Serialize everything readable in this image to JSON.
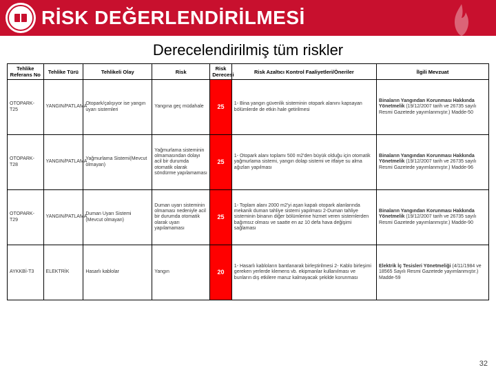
{
  "header": {
    "title": "RİSK DEĞERLENDİRİLMESİ"
  },
  "subtitle": "Derecelendirilmiş tüm riskler",
  "colors": {
    "header_bg": "#c8102e",
    "header_text": "#ffffff",
    "border": "#000000",
    "score_bg": "#ff0000",
    "score_text": "#ffffff"
  },
  "table": {
    "columns": [
      "Tehlike Referans No",
      "Tehlike Türü",
      "Tehlikeli Olay",
      "Risk",
      "Risk Derecesi",
      "Risk Azaltıcı Kontrol Faaliyetleri/Öneriler",
      "İlgili Mevzuat"
    ],
    "rows": [
      {
        "ref": "OTOPARK-T25",
        "type": "YANGIN/PATLAMA",
        "event": "Otopark/çalışıyor ise yangın uyarı sistemleri",
        "risk": "Yangına geç müdahale",
        "score": "25",
        "control": "1- Bina yangın güvenlik sisteminin otopark alanını kapsayan bölümlerde de etkin hale getirilmesi",
        "law": "Binaların Yangından Korunması Hakkında Yönetmelik (19/12/2007 tarih ve 26735 sayılı Resmi Gazetede yayımlanmıştır.) Madde-50"
      },
      {
        "ref": "OTOPARK-T28",
        "type": "YANGIN/PATLAMA",
        "event": "Yağmurlama Sistemi(Mevcut olmayan)",
        "risk": "Yağmurlama sisteminin olmamasından dolayı acil bir durumda otomatik olarak söndürme yapılamaması",
        "score": "25",
        "control": "1- Otopark alanı toplamı 500 m2'den büyük olduğu için otomatik yağmurlama sistemi, yangın dolap sistemi ve itfaiye su alma ağızları yapılması",
        "law": "Binaların Yangından Korunması Hakkında Yönetmelik (19/12/2007 tarih ve 26735 sayılı Resmi Gazetede yayımlanmıştır.) Madde-96"
      },
      {
        "ref": "OTOPARK-T29",
        "type": "YANGIN/PATLAMA",
        "event": "Duman Uyarı Sistemi (Mevcut olmayan)",
        "risk": "Duman uyarı sisteminin olmaması nedeniyle acil bir durumda otomatik olarak uyarı yapılamaması",
        "score": "25",
        "control": "1- Toplam alanı 2000 m2'yi aşan kapalı otopark alanlarında mekanik duman tahliye sistemi yapılması 2-Duman tahliye sisteminin binanın diğer bölümlerine hizmet veren sistemlerden bağımsız olması ve saatte en az 10 defa hava değişimi sağlaması",
        "law": "Binaların Yangından Korunması Hakkında Yönetmelik (19/12/2007 tarih ve 26735 sayılı Resmi Gazetede yayımlanmıştır.) Madde-90"
      },
      {
        "ref": "AYKKBİ-T3",
        "type": "ELEKTRİK",
        "event": "Hasarlı kablolar",
        "risk": "Yangın",
        "score": "20",
        "control": "1- Hasarlı kabloların bantlanarak birleştirilmesi 2- Kablo birleşimi gereken yerlerde klemens vb. ekipmanlar kullanılması ve bunların dış etkilere maruz kalmayacak şekilde korunması",
        "law": "Elektrik İç Tesisleri Yönetmeliği (4/11/1984 ve 18565 Sayılı Resmi Gazetede yayımlanmıştır.) Madde-59"
      }
    ]
  },
  "pagenum": "32"
}
